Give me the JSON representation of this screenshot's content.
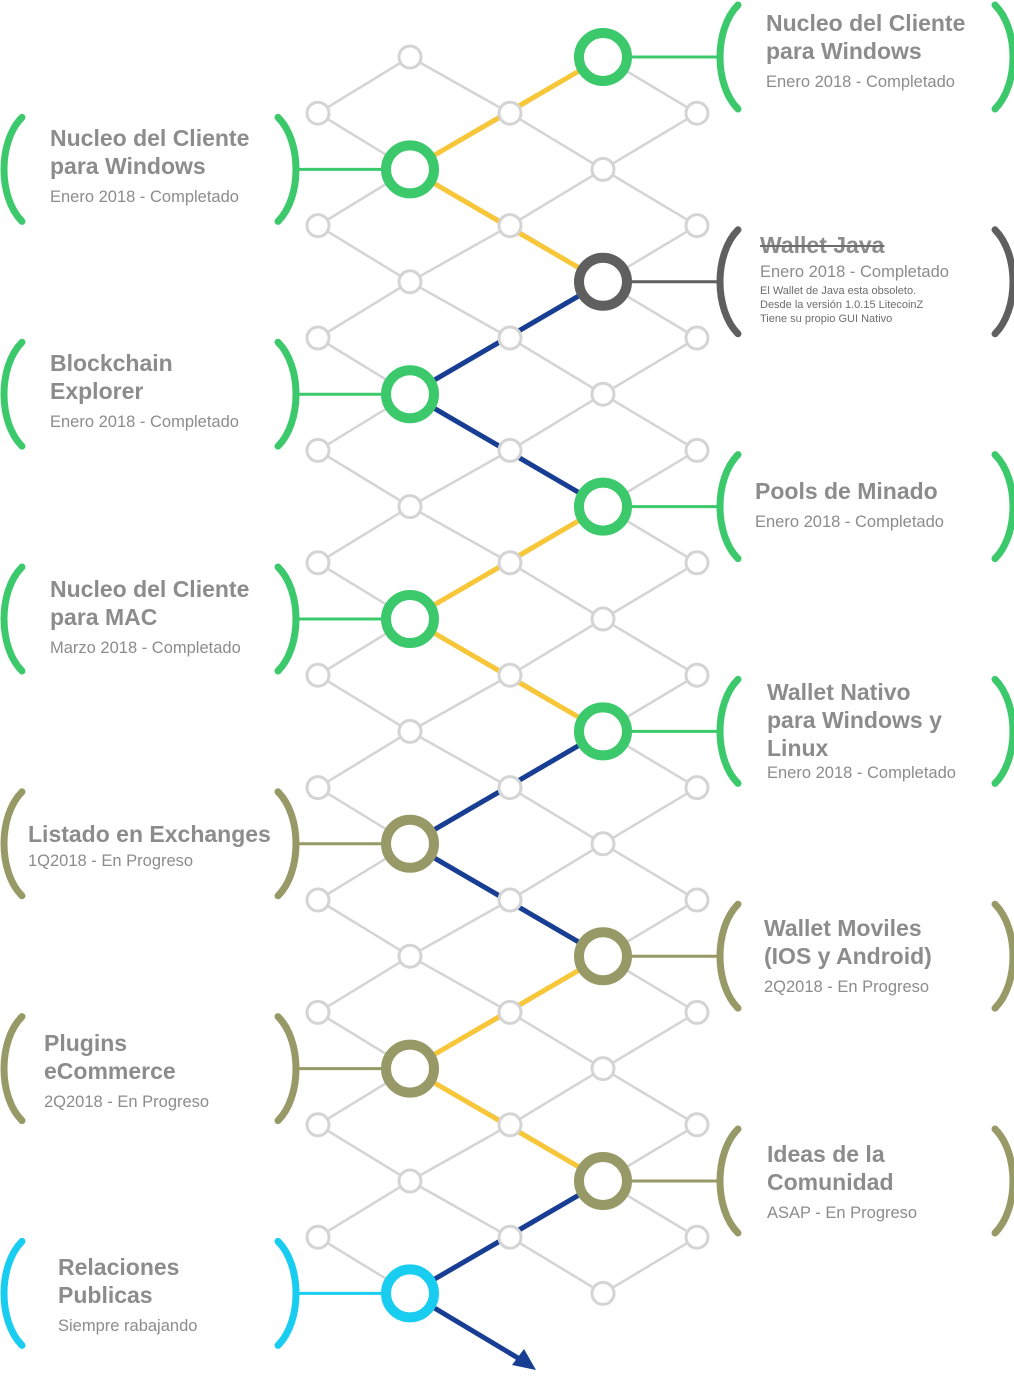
{
  "colors": {
    "completed": "#3cc96b",
    "in_progress": "#979966",
    "deprecated": "#5f5f5f",
    "ongoing": "#19cdf0",
    "link_yellow": "#f7c739",
    "link_blue": "#173e92",
    "grid": "#d4d4d4",
    "text": "#8c8c8c"
  },
  "milestones": [
    {
      "title": "Nucleo del Cliente\npara Windows",
      "date": "Enero 2018 - Completado",
      "status": "completed"
    },
    {
      "title": "Nucleo del Cliente\npara Windows",
      "date": "Enero 2018 - Completado",
      "status": "completed"
    },
    {
      "title": "Wallet Java",
      "date": "Enero 2018 - Completado",
      "status": "deprecated",
      "note": "El Wallet de Java esta obsoleto.\nDesde la versión 1.0.15 LitecoinZ\nTiene su propio GUI Nativo"
    },
    {
      "title": "Blockchain\nExplorer",
      "date": "Enero 2018 - Completado",
      "status": "completed"
    },
    {
      "title": "Pools de Minado",
      "date": "Enero 2018 - Completado",
      "status": "completed"
    },
    {
      "title": "Nucleo del Cliente\npara MAC",
      "date": "Marzo 2018 - Completado",
      "status": "completed"
    },
    {
      "title": "Wallet Nativo\npara Windows y\nLinux",
      "date": "Enero 2018 - Completado",
      "status": "completed"
    },
    {
      "title": "Listado en Exchanges",
      "date": "1Q2018 - En Progreso",
      "status": "in_progress"
    },
    {
      "title": "Wallet Moviles\n(IOS y Android)",
      "date": "2Q2018 - En Progreso",
      "status": "in_progress"
    },
    {
      "title": "Plugins\neCommerce",
      "date": "2Q2018 - En Progreso",
      "status": "in_progress"
    },
    {
      "title": "Ideas de la\nComunidad",
      "date": "ASAP - En Progreso",
      "status": "in_progress"
    },
    {
      "title": "Relaciones\nPublicas",
      "date": "Siempre rabajando",
      "status": "ongoing"
    }
  ]
}
